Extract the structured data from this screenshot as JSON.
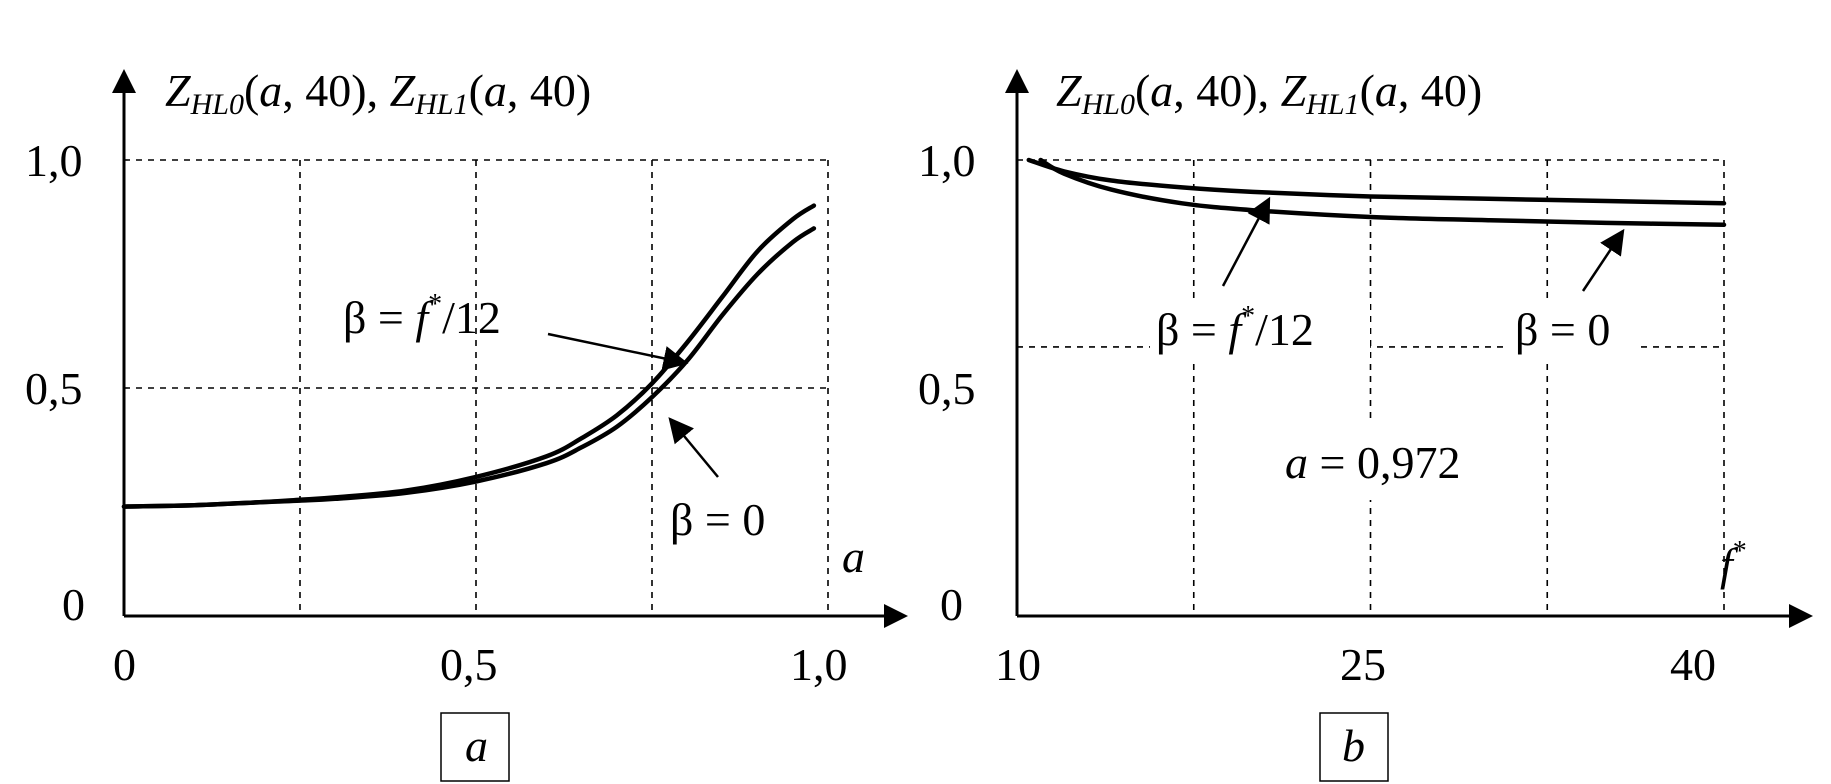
{
  "chart_data": [
    {
      "type": "line",
      "panel_label": "a",
      "title": "Z_HL0(a, 40), Z_HL1(a, 40)",
      "xlabel": "a",
      "xlim": [
        0,
        1.0
      ],
      "ylim": [
        0,
        1.0
      ],
      "xticks": [
        "0",
        "0,5",
        "1,0"
      ],
      "yticks": [
        "0",
        "0,5",
        "1,0"
      ],
      "x_grid": [
        0.25,
        0.5,
        0.75,
        1.0
      ],
      "y_grid": [
        0.5,
        1.0
      ],
      "series": [
        {
          "name": "β = f*/12",
          "x": [
            0,
            0.1,
            0.2,
            0.25,
            0.3,
            0.4,
            0.5,
            0.6,
            0.65,
            0.7,
            0.75,
            0.8,
            0.85,
            0.9,
            0.95,
            0.98
          ],
          "y": [
            0.24,
            0.243,
            0.25,
            0.255,
            0.26,
            0.275,
            0.305,
            0.35,
            0.39,
            0.44,
            0.51,
            0.6,
            0.7,
            0.8,
            0.87,
            0.9
          ]
        },
        {
          "name": "β = 0",
          "x": [
            0,
            0.1,
            0.2,
            0.25,
            0.3,
            0.4,
            0.5,
            0.6,
            0.65,
            0.7,
            0.75,
            0.8,
            0.85,
            0.9,
            0.95,
            0.98
          ],
          "y": [
            0.24,
            0.243,
            0.25,
            0.253,
            0.257,
            0.27,
            0.295,
            0.335,
            0.37,
            0.415,
            0.48,
            0.56,
            0.66,
            0.75,
            0.82,
            0.85
          ]
        }
      ],
      "annotations": [
        "β = f*/12",
        "β = 0"
      ]
    },
    {
      "type": "line",
      "panel_label": "b",
      "title": "Z_HL0(a, 40), Z_HL1(a, 40)",
      "xlabel": "f*",
      "xlim": [
        10,
        40
      ],
      "ylim": [
        0,
        1.0
      ],
      "xticks": [
        "10",
        "25",
        "40"
      ],
      "yticks": [
        "0",
        "0,5",
        "1,0"
      ],
      "x_grid": [
        17.5,
        25,
        32.5,
        40
      ],
      "y_grid": [
        0.59,
        1.0
      ],
      "series": [
        {
          "name": "β = 0",
          "x": [
            10.5,
            12,
            14,
            17,
            20,
            25,
            30,
            35,
            40
          ],
          "y": [
            1.0,
            0.975,
            0.955,
            0.94,
            0.93,
            0.92,
            0.915,
            0.91,
            0.905
          ]
        },
        {
          "name": "β = f*/12",
          "x": [
            11,
            12,
            14,
            17,
            20,
            25,
            30,
            35,
            40
          ],
          "y": [
            1.0,
            0.97,
            0.935,
            0.905,
            0.89,
            0.875,
            0.868,
            0.862,
            0.858
          ]
        }
      ],
      "annotations": [
        "β = f*/12",
        "β = 0",
        "a = 0,972"
      ]
    }
  ],
  "text": {
    "title_left": {
      "z": "Z",
      "sub0": "HL0",
      "mid": "(",
      "a1": "a",
      "rest1": ", 40), ",
      "z2": "Z",
      "sub1": "HL1",
      "open2": "(",
      "a2": "a",
      "rest2": ", 40)"
    },
    "title_right": {
      "z": "Z",
      "sub0": "HL0",
      "mid": "(",
      "a1": "a",
      "rest1": ", 40), ",
      "z2": "Z",
      "sub1": "HL1",
      "open2": "(",
      "a2": "a",
      "rest2": ", 40)"
    },
    "left": {
      "y_ticks": [
        "1,0",
        "0,5",
        "0"
      ],
      "x_ticks": [
        "0",
        "0,5",
        "1,0"
      ],
      "x_label": "a",
      "ann_beta_f": {
        "beta": "β = ",
        "f": "f",
        "star": "*",
        "tail": "/12"
      },
      "ann_beta_0": "β = 0",
      "panel": "a"
    },
    "right": {
      "y_ticks": [
        "1,0",
        "0,5",
        "0"
      ],
      "x_ticks": [
        "10",
        "25",
        "40"
      ],
      "x_label_f": "f",
      "x_label_star": "*",
      "ann_beta_f": {
        "beta": "β = ",
        "f": "f",
        "star": "*",
        "tail": "/12"
      },
      "ann_beta_0": "β = 0",
      "ann_a": {
        "a": "a",
        "eq": " = 0,972"
      },
      "panel": "b"
    }
  }
}
